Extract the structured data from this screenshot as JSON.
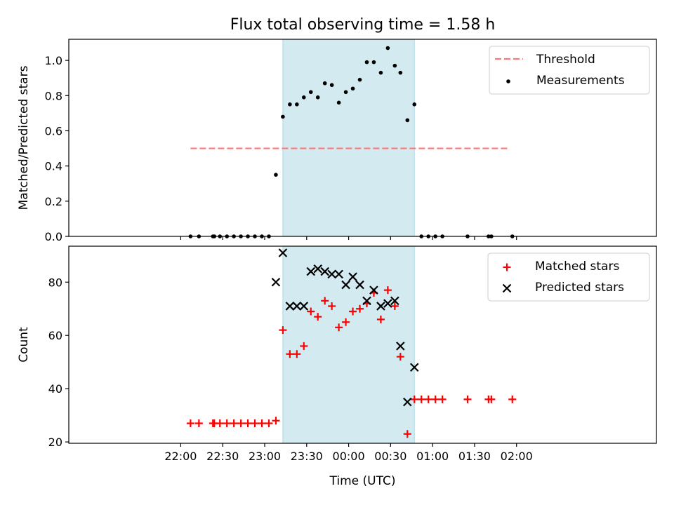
{
  "chart_data": {
    "type": "scatter",
    "title": "Flux total observing time = 1.58 h",
    "xlabel": "Time (UTC)",
    "x_unit": "minutes relative to 00:00 UTC",
    "x_range": [
      -200,
      220
    ],
    "x_ticks": [
      -120,
      -90,
      -60,
      -30,
      0,
      30,
      60,
      90,
      120
    ],
    "x_tick_labels": [
      "22:00",
      "22:30",
      "23:00",
      "23:30",
      "00:00",
      "00:30",
      "01:00",
      "01:30",
      "02:00"
    ],
    "observing_window": [
      -47,
      47
    ],
    "window_color": "#d3eaf0",
    "panels": [
      {
        "ylabel": "Matched/Predicted stars",
        "ylim": [
          0,
          1.12
        ],
        "y_ticks": [
          0,
          0.2,
          0.4,
          0.6,
          0.8,
          1.0
        ],
        "y_tick_labels": [
          "0.0",
          "0.2",
          "0.4",
          "0.6",
          "0.8",
          "1.0"
        ],
        "threshold": {
          "name": "Threshold",
          "value": 0.5,
          "x_range": [
            -113,
            115
          ],
          "color": "#ff7777"
        },
        "legend": [
          "Threshold",
          "Measurements"
        ],
        "legend_position": "upper right",
        "series": [
          {
            "name": "Measurements",
            "marker": "dot",
            "color": "#000000",
            "points": [
              [
                -113,
                0
              ],
              [
                -107,
                0
              ],
              [
                -97,
                0
              ],
              [
                -96,
                0
              ],
              [
                -92,
                0
              ],
              [
                -87,
                0
              ],
              [
                -82,
                0
              ],
              [
                -77,
                0
              ],
              [
                -72,
                0
              ],
              [
                -67,
                0
              ],
              [
                -62,
                0
              ],
              [
                -57,
                0
              ],
              [
                -52,
                0.35
              ],
              [
                -47,
                0.68
              ],
              [
                -42,
                0.75
              ],
              [
                -37,
                0.75
              ],
              [
                -32,
                0.79
              ],
              [
                -27,
                0.82
              ],
              [
                -22,
                0.79
              ],
              [
                -17,
                0.87
              ],
              [
                -12,
                0.86
              ],
              [
                -7,
                0.76
              ],
              [
                -2,
                0.82
              ],
              [
                3,
                0.84
              ],
              [
                8,
                0.89
              ],
              [
                13,
                0.99
              ],
              [
                18,
                0.99
              ],
              [
                23,
                0.93
              ],
              [
                28,
                1.07
              ],
              [
                33,
                0.97
              ],
              [
                37,
                0.93
              ],
              [
                42,
                0.66
              ],
              [
                47,
                0.75
              ],
              [
                52,
                0
              ],
              [
                57,
                0
              ],
              [
                62,
                0
              ],
              [
                67,
                0
              ],
              [
                85,
                0
              ],
              [
                100,
                0
              ],
              [
                102,
                0
              ],
              [
                117,
                0
              ]
            ]
          }
        ]
      },
      {
        "ylabel": "Count",
        "ylim": [
          19.5,
          93.5
        ],
        "y_ticks": [
          20,
          40,
          60,
          80
        ],
        "y_tick_labels": [
          "20",
          "40",
          "60",
          "80"
        ],
        "legend": [
          "Matched stars",
          "Predicted stars"
        ],
        "legend_position": "upper right",
        "series": [
          {
            "name": "Matched stars",
            "marker": "plus",
            "color": "#ff0000",
            "points": [
              [
                -113,
                27
              ],
              [
                -107,
                27
              ],
              [
                -97,
                27
              ],
              [
                -96,
                27
              ],
              [
                -92,
                27
              ],
              [
                -87,
                27
              ],
              [
                -82,
                27
              ],
              [
                -77,
                27
              ],
              [
                -72,
                27
              ],
              [
                -67,
                27
              ],
              [
                -62,
                27
              ],
              [
                -57,
                27
              ],
              [
                -52,
                28
              ],
              [
                -47,
                62
              ],
              [
                -42,
                53
              ],
              [
                -37,
                53
              ],
              [
                -32,
                56
              ],
              [
                -27,
                69
              ],
              [
                -22,
                67
              ],
              [
                -17,
                73
              ],
              [
                -12,
                71
              ],
              [
                -7,
                63
              ],
              [
                -2,
                65
              ],
              [
                3,
                69
              ],
              [
                8,
                70
              ],
              [
                13,
                72
              ],
              [
                18,
                76
              ],
              [
                23,
                66
              ],
              [
                28,
                77
              ],
              [
                33,
                71
              ],
              [
                37,
                52
              ],
              [
                42,
                23
              ],
              [
                47,
                36
              ],
              [
                52,
                36
              ],
              [
                57,
                36
              ],
              [
                62,
                36
              ],
              [
                67,
                36
              ],
              [
                85,
                36
              ],
              [
                100,
                36
              ],
              [
                102,
                36
              ],
              [
                117,
                36
              ]
            ]
          },
          {
            "name": "Predicted stars",
            "marker": "x",
            "color": "#000000",
            "points": [
              [
                -52,
                80
              ],
              [
                -47,
                91
              ],
              [
                -42,
                71
              ],
              [
                -37,
                71
              ],
              [
                -32,
                71
              ],
              [
                -27,
                84
              ],
              [
                -22,
                85
              ],
              [
                -17,
                84
              ],
              [
                -12,
                83
              ],
              [
                -7,
                83
              ],
              [
                -2,
                79
              ],
              [
                3,
                82
              ],
              [
                8,
                79
              ],
              [
                13,
                73
              ],
              [
                18,
                77
              ],
              [
                23,
                71
              ],
              [
                28,
                72
              ],
              [
                33,
                73
              ],
              [
                37,
                56
              ],
              [
                42,
                35
              ],
              [
                47,
                48
              ]
            ]
          }
        ]
      }
    ]
  }
}
